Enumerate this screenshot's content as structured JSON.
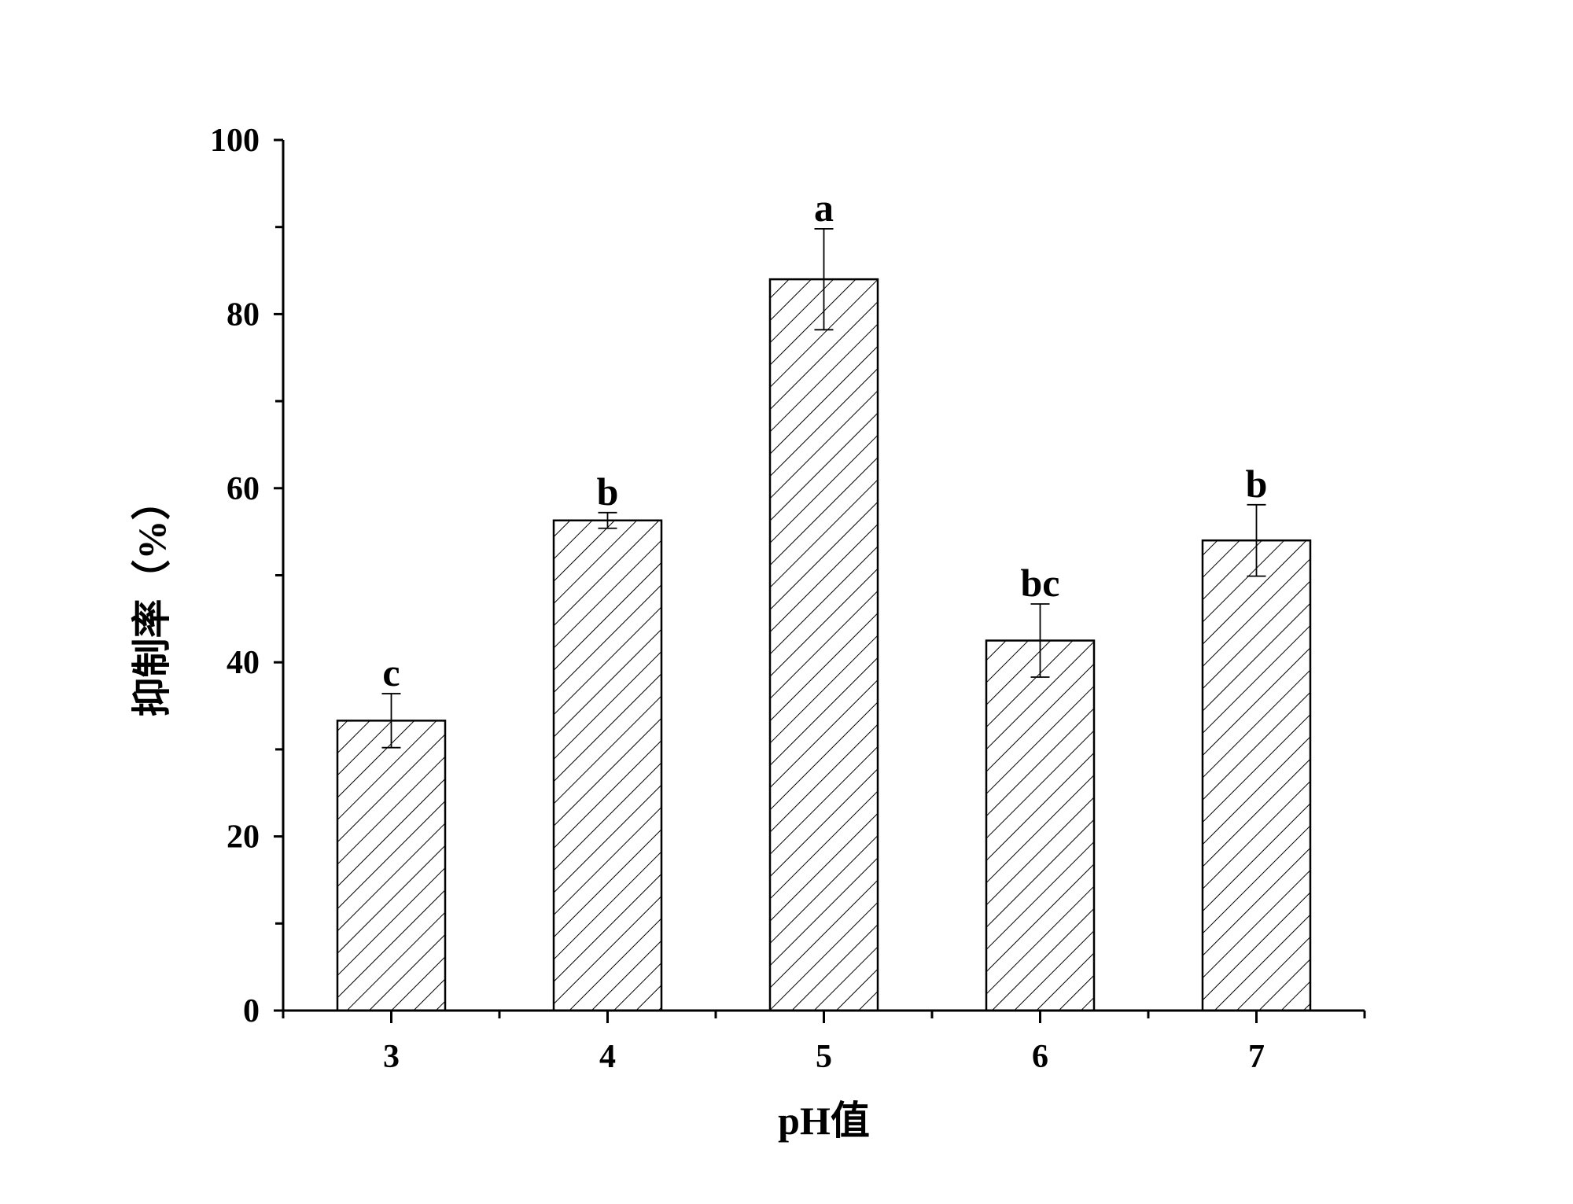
{
  "chart_data": {
    "type": "bar",
    "categories": [
      "3",
      "4",
      "5",
      "6",
      "7"
    ],
    "values": [
      33.3,
      56.3,
      84.0,
      42.5,
      54.0
    ],
    "errors": [
      3.1,
      0.9,
      5.8,
      4.2,
      4.1
    ],
    "significance": [
      "c",
      "b",
      "a",
      "bc",
      "b"
    ],
    "xlabel": "pH值",
    "ylabel": "抑制率（%）",
    "ylim": [
      0,
      100
    ],
    "yticks": [
      "0",
      "20",
      "40",
      "60",
      "80",
      "100"
    ],
    "grid": false,
    "bar_fill": "diagonal hatch",
    "bar_color": "#ffffff",
    "line_color": "#000000"
  }
}
